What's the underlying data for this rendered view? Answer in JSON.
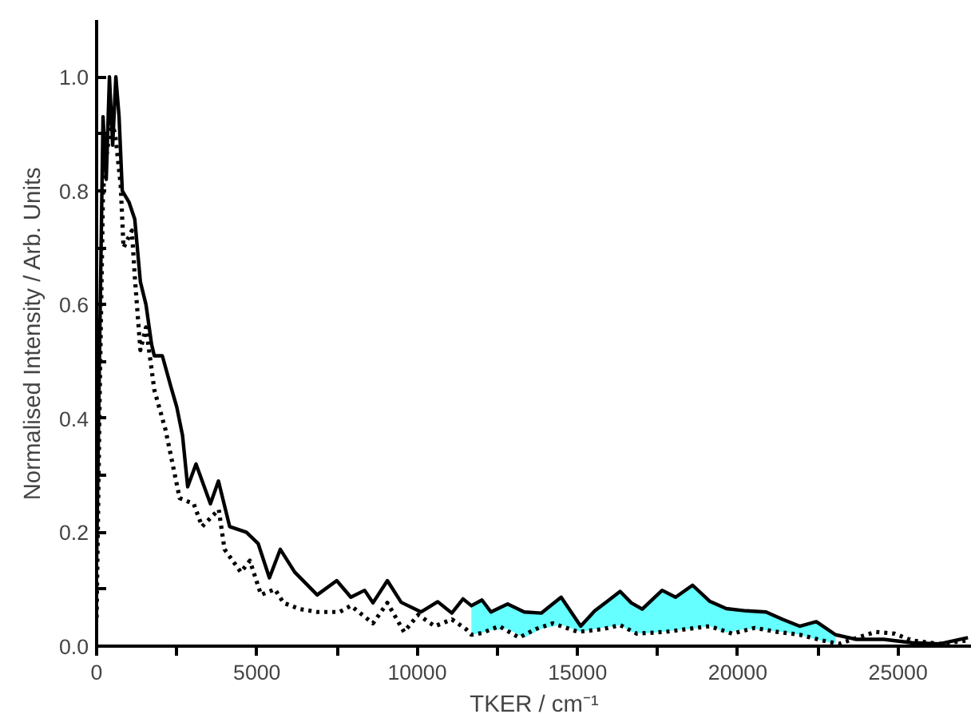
{
  "chart_data": {
    "type": "line",
    "xlabel": "TKER / cm⁻¹",
    "ylabel": "Normalised Intensity / Arb. Units",
    "xlim": [
      0,
      27300
    ],
    "ylim": [
      0,
      1.1
    ],
    "xticks": [
      0,
      {
        "value": 2500,
        "label": null
      },
      5000,
      {
        "value": 7500,
        "label": null
      },
      10000,
      {
        "value": 12500,
        "label": null
      },
      15000,
      {
        "value": 17500,
        "label": null
      },
      20000,
      {
        "value": 22500,
        "label": null
      },
      25000
    ],
    "yticks": [
      {
        "value": 0,
        "label": "0.0"
      },
      {
        "value": 0.1,
        "label": null
      },
      {
        "value": 0.2,
        "label": "0.2"
      },
      {
        "value": 0.3,
        "label": null
      },
      {
        "value": 0.4,
        "label": "0.4"
      },
      {
        "value": 0.5,
        "label": null
      },
      {
        "value": 0.6,
        "label": "0.6"
      },
      {
        "value": 0.7,
        "label": null
      },
      {
        "value": 0.8,
        "label": "0.8"
      },
      {
        "value": 0.9,
        "label": null
      },
      {
        "value": 1.0,
        "label": "1.0"
      }
    ],
    "grid": false,
    "series": [
      {
        "color": "#66ffff",
        "x": [
          11690,
          12020,
          12300,
          12820,
          13340,
          13870,
          14490,
          15100,
          15540,
          16330,
          16680,
          17020,
          17640,
          18060,
          18590,
          19120,
          19640,
          20260,
          20880,
          21400,
          21930,
          22450,
          23050
        ],
        "values": [
          null,
          null,
          null,
          null,
          null,
          null,
          null,
          null,
          null,
          null,
          null,
          null,
          null,
          null,
          null,
          null,
          null,
          null,
          null,
          null,
          null,
          null,
          null
        ],
        "lower": [
          0.02,
          0.023,
          0.028,
          0.03,
          0.015,
          0.03,
          0.038,
          0.025,
          0.03,
          0.037,
          0.025,
          0.022,
          0.025,
          0.028,
          0.03,
          0.035,
          0.024,
          0.03,
          0.028,
          0.025,
          0.02,
          0.012,
          0.004
        ],
        "upper": [
          0.071,
          0.081,
          0.06,
          0.074,
          0.06,
          0.058,
          0.086,
          0.035,
          0.062,
          0.096,
          0.076,
          0.065,
          0.098,
          0.086,
          0.107,
          0.079,
          0.066,
          0.062,
          0.06,
          0.047,
          0.035,
          0.043,
          0.02
        ]
      },
      {
        "color": "#000000",
        "line_style": "solid",
        "x": [
          0,
          100,
          200,
          300,
          400,
          500,
          600,
          700,
          800,
          1010,
          1190,
          1365,
          1540,
          1715,
          1800,
          2050,
          2320,
          2500,
          2680,
          2840,
          3100,
          3550,
          3800,
          4150,
          4670,
          5040,
          5390,
          5730,
          6180,
          6880,
          7490,
          7930,
          8360,
          8620,
          9070,
          9500,
          10120,
          10640,
          11080,
          11430,
          11690,
          12020,
          12300,
          12820,
          13340,
          13870,
          14490,
          15100,
          15540,
          16330,
          16680,
          17020,
          17640,
          18060,
          18590,
          19120,
          19640,
          20260,
          20880,
          21400,
          21930,
          22450,
          23050,
          23680,
          24550,
          25430,
          26300,
          27180
        ],
        "values": [
          0.15,
          0.55,
          0.93,
          0.82,
          1.0,
          0.88,
          1.0,
          0.93,
          0.8,
          0.78,
          0.75,
          0.64,
          0.6,
          0.53,
          0.51,
          0.51,
          0.455,
          0.42,
          0.37,
          0.28,
          0.32,
          0.25,
          0.29,
          0.21,
          0.2,
          0.18,
          0.12,
          0.17,
          0.13,
          0.09,
          0.115,
          0.086,
          0.098,
          0.076,
          0.115,
          0.077,
          0.06,
          0.078,
          0.058,
          0.083,
          0.071,
          0.081,
          0.06,
          0.074,
          0.06,
          0.058,
          0.086,
          0.035,
          0.062,
          0.096,
          0.076,
          0.065,
          0.098,
          0.086,
          0.107,
          0.079,
          0.066,
          0.062,
          0.06,
          0.047,
          0.035,
          0.043,
          0.02,
          0.012,
          0.012,
          0.006,
          0.004,
          0.015
        ]
      },
      {
        "color": "#000000",
        "line_style": "dotted",
        "x": [
          0,
          100,
          200,
          315,
          450,
          580,
          750,
          840,
          1100,
          1190,
          1365,
          1540,
          1800,
          2150,
          2590,
          3030,
          3290,
          3810,
          3990,
          4500,
          4780,
          5130,
          5560,
          5830,
          6350,
          6880,
          7580,
          7930,
          8620,
          9070,
          9590,
          10030,
          10550,
          11080,
          11520,
          11690,
          12020,
          12560,
          13180,
          13700,
          14230,
          15020,
          15800,
          16330,
          16850,
          17730,
          18430,
          19120,
          19830,
          20530,
          21230,
          21930,
          22630,
          23150,
          24290,
          24890,
          25430,
          26300,
          27180
        ],
        "values": [
          0.05,
          0.45,
          0.8,
          0.865,
          0.92,
          0.9,
          0.81,
          0.7,
          0.73,
          0.65,
          0.52,
          0.56,
          0.45,
          0.38,
          0.26,
          0.25,
          0.21,
          0.24,
          0.17,
          0.13,
          0.15,
          0.09,
          0.1,
          0.076,
          0.065,
          0.06,
          0.06,
          0.071,
          0.04,
          0.076,
          0.025,
          0.055,
          0.035,
          0.047,
          0.03,
          0.02,
          0.023,
          0.035,
          0.015,
          0.03,
          0.04,
          0.025,
          0.03,
          0.037,
          0.022,
          0.025,
          0.03,
          0.035,
          0.022,
          0.032,
          0.025,
          0.02,
          0.01,
          0.004,
          0.025,
          0.022,
          0.01,
          0.004,
          0.01
        ]
      }
    ]
  }
}
